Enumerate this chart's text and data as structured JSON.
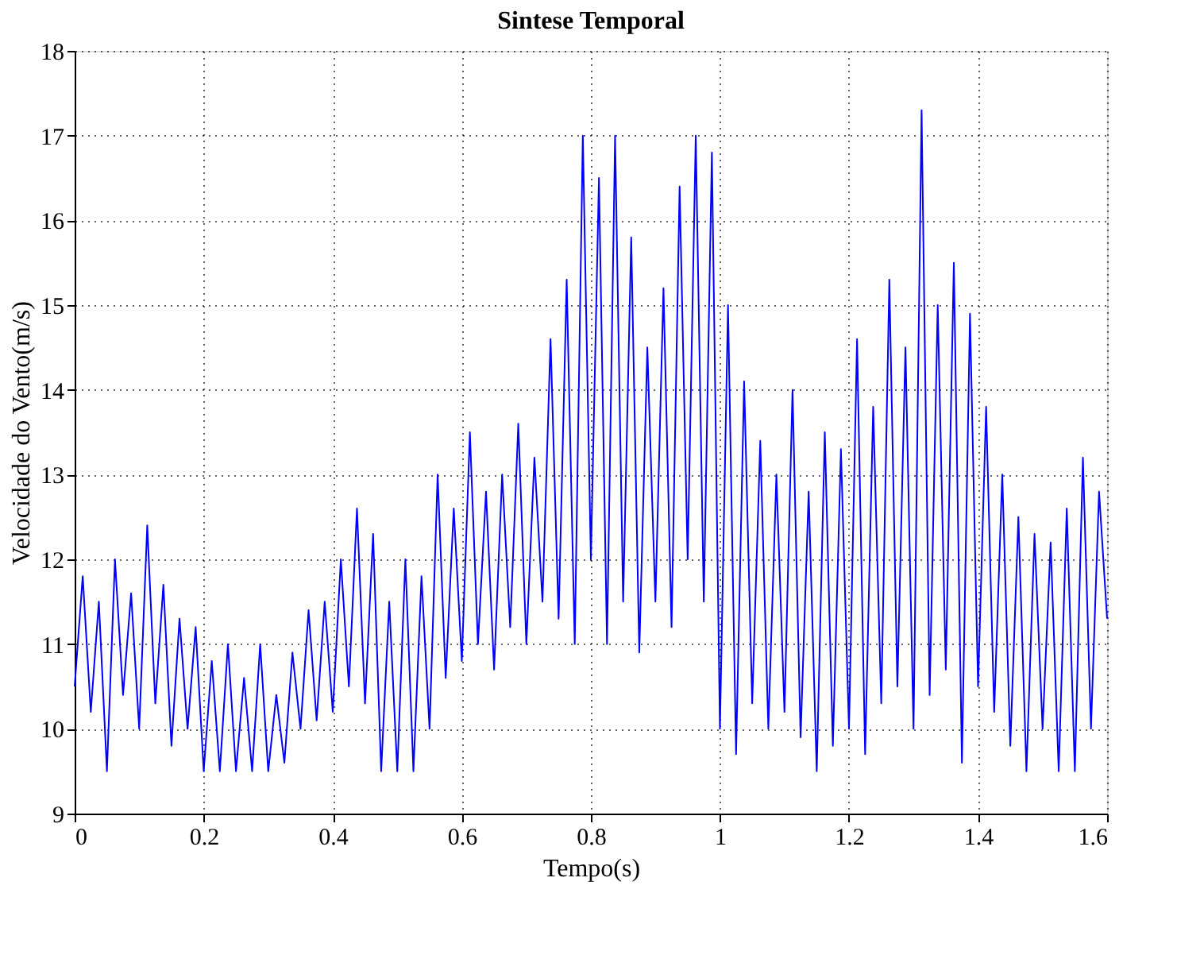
{
  "chart_data": {
    "type": "line",
    "title": "Sintese Temporal",
    "xlabel": "Tempo(s)",
    "ylabel": "Velocidade do Vento(m/s)",
    "xlim": [
      0,
      1.6
    ],
    "ylim": [
      9,
      18
    ],
    "xticks": [
      0,
      0.2,
      0.4,
      0.6,
      0.8,
      1,
      1.2,
      1.4,
      1.6
    ],
    "yticks": [
      9,
      10,
      11,
      12,
      13,
      14,
      15,
      16,
      17,
      18
    ],
    "grid": true,
    "marker": "none",
    "line_style": "solid",
    "series": [
      {
        "color": "#0000ff",
        "x": [
          0,
          0.0125,
          0.025,
          0.0375,
          0.05,
          0.0625,
          0.075,
          0.0875,
          0.1,
          0.1125,
          0.125,
          0.1375,
          0.15,
          0.1625,
          0.175,
          0.1875,
          0.2,
          0.2125,
          0.225,
          0.2375,
          0.25,
          0.2625,
          0.275,
          0.2875,
          0.3,
          0.3125,
          0.325,
          0.3375,
          0.35,
          0.3625,
          0.375,
          0.3875,
          0.4,
          0.4125,
          0.425,
          0.4375,
          0.45,
          0.4625,
          0.475,
          0.4875,
          0.5,
          0.5125,
          0.525,
          0.5375,
          0.55,
          0.5625,
          0.575,
          0.5875,
          0.6,
          0.6125,
          0.625,
          0.6375,
          0.65,
          0.6625,
          0.675,
          0.6875,
          0.7,
          0.7125,
          0.725,
          0.7375,
          0.75,
          0.7625,
          0.775,
          0.7875,
          0.8,
          0.8125,
          0.825,
          0.8375,
          0.85,
          0.8625,
          0.875,
          0.8875,
          0.9,
          0.9125,
          0.925,
          0.9375,
          0.95,
          0.9625,
          0.975,
          0.9875,
          1,
          1.0125,
          1.025,
          1.0375,
          1.05,
          1.0625,
          1.075,
          1.0875,
          1.1,
          1.1125,
          1.125,
          1.1375,
          1.15,
          1.1625,
          1.175,
          1.1875,
          1.2,
          1.2125,
          1.225,
          1.2375,
          1.25,
          1.2625,
          1.275,
          1.2875,
          1.3,
          1.3125,
          1.325,
          1.3375,
          1.35,
          1.3625,
          1.375,
          1.3875,
          1.4,
          1.4125,
          1.425,
          1.4375,
          1.45,
          1.4625,
          1.475,
          1.4875,
          1.5,
          1.5125,
          1.525,
          1.5375,
          1.55,
          1.5625,
          1.575,
          1.5875,
          1.6
        ],
        "values": [
          10.5,
          11.8,
          10.2,
          11.5,
          9.5,
          12.0,
          10.4,
          11.6,
          10.0,
          12.4,
          10.3,
          11.7,
          9.8,
          11.3,
          10.0,
          11.2,
          9.5,
          10.8,
          9.5,
          11.0,
          9.5,
          10.6,
          9.5,
          11.0,
          9.5,
          10.4,
          9.6,
          10.9,
          10.0,
          11.4,
          10.1,
          11.5,
          10.2,
          12.0,
          10.5,
          12.6,
          10.3,
          12.3,
          9.5,
          11.5,
          9.5,
          12.0,
          9.5,
          11.8,
          10.0,
          13.0,
          10.6,
          12.6,
          10.8,
          13.5,
          11.0,
          12.8,
          10.7,
          13.0,
          11.2,
          13.6,
          11.0,
          13.2,
          11.5,
          14.6,
          11.3,
          15.3,
          11.0,
          17.0,
          12.0,
          16.5,
          11.0,
          17.0,
          11.5,
          15.8,
          10.9,
          14.5,
          11.5,
          15.2,
          11.2,
          16.4,
          12.0,
          17.0,
          11.5,
          16.8,
          10.0,
          15.0,
          9.7,
          14.1,
          10.3,
          13.4,
          10.0,
          13.0,
          10.2,
          14.0,
          9.9,
          12.8,
          9.5,
          13.5,
          9.8,
          13.3,
          10.0,
          14.6,
          9.7,
          13.8,
          10.3,
          15.3,
          10.5,
          14.5,
          10.0,
          17.3,
          10.4,
          15.0,
          10.7,
          15.5,
          9.6,
          14.9,
          10.5,
          13.8,
          10.2,
          13.0,
          9.8,
          12.5,
          9.5,
          12.3,
          10.0,
          12.2,
          9.5,
          12.6,
          9.5,
          13.2,
          10.0,
          12.8,
          11.3
        ]
      }
    ]
  }
}
